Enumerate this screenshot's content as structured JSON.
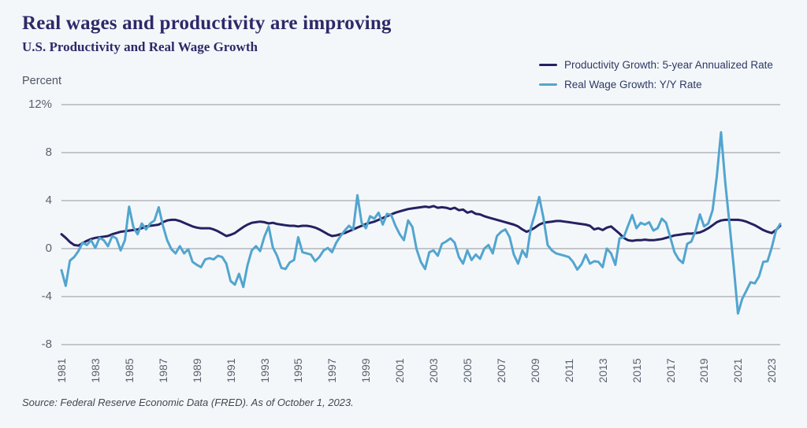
{
  "header": {
    "title": "Real wages and productivity are improving",
    "subtitle": "U.S. Productivity and Real Wage Growth"
  },
  "axis": {
    "unit_label": "Percent",
    "y_tick_labels": [
      "12%",
      "8",
      "4",
      "0",
      "-4",
      "-8"
    ],
    "y_tick_values": [
      12,
      8,
      4,
      0,
      -4,
      -8
    ],
    "x_tick_years": [
      1981,
      1983,
      1985,
      1987,
      1989,
      1991,
      1993,
      1995,
      1997,
      1999,
      2001,
      2003,
      2005,
      2007,
      2009,
      2011,
      2013,
      2015,
      2017,
      2019,
      2021,
      2023
    ]
  },
  "source": "Source: Federal Reserve Economic Data (FRED). As of October 1, 2023.",
  "colors": {
    "background": "#f4f7fa",
    "title": "#2e2968",
    "gridline": "#8f959c",
    "axis_text": "#59626e",
    "productivity_line": "#252161",
    "wage_line": "#52a5cf"
  },
  "chart_data": {
    "type": "line",
    "title": "U.S. Productivity and Real Wage Growth",
    "ylabel": "Percent",
    "ylim": [
      -8,
      12
    ],
    "grid": "horizontal",
    "legend_position": "top-right",
    "frequency": "quarterly",
    "x_start_year": 1981,
    "x_end_label": "2023 Q3",
    "series": [
      {
        "name": "Productivity Growth: 5-year Annualized Rate",
        "color": "#252161",
        "values": [
          1.2,
          0.9,
          0.55,
          0.3,
          0.25,
          0.45,
          0.65,
          0.8,
          0.9,
          0.95,
          1.0,
          1.05,
          1.2,
          1.3,
          1.4,
          1.45,
          1.5,
          1.55,
          1.6,
          1.7,
          1.85,
          1.9,
          1.95,
          2.0,
          2.2,
          2.35,
          2.4,
          2.4,
          2.3,
          2.15,
          2.0,
          1.85,
          1.75,
          1.7,
          1.7,
          1.7,
          1.6,
          1.45,
          1.25,
          1.05,
          1.15,
          1.3,
          1.55,
          1.8,
          2.0,
          2.15,
          2.2,
          2.25,
          2.2,
          2.1,
          2.15,
          2.05,
          2.0,
          1.95,
          1.9,
          1.9,
          1.85,
          1.9,
          1.9,
          1.85,
          1.75,
          1.6,
          1.4,
          1.2,
          1.05,
          1.1,
          1.2,
          1.3,
          1.45,
          1.6,
          1.75,
          1.9,
          2.05,
          2.15,
          2.25,
          2.4,
          2.55,
          2.7,
          2.85,
          3.0,
          3.1,
          3.2,
          3.3,
          3.35,
          3.4,
          3.45,
          3.5,
          3.45,
          3.55,
          3.4,
          3.45,
          3.4,
          3.3,
          3.4,
          3.2,
          3.25,
          3.0,
          3.1,
          2.9,
          2.85,
          2.7,
          2.6,
          2.5,
          2.4,
          2.3,
          2.2,
          2.1,
          2.0,
          1.85,
          1.6,
          1.4,
          1.55,
          1.75,
          2.0,
          2.15,
          2.2,
          2.25,
          2.3,
          2.3,
          2.25,
          2.2,
          2.15,
          2.1,
          2.05,
          2.0,
          1.9,
          1.6,
          1.7,
          1.55,
          1.75,
          1.85,
          1.55,
          1.25,
          0.9,
          0.7,
          0.65,
          0.7,
          0.7,
          0.75,
          0.7,
          0.7,
          0.75,
          0.8,
          0.9,
          1.0,
          1.1,
          1.15,
          1.2,
          1.25,
          1.25,
          1.3,
          1.35,
          1.5,
          1.7,
          1.95,
          2.2,
          2.35,
          2.4,
          2.4,
          2.4,
          2.4,
          2.35,
          2.25,
          2.1,
          1.95,
          1.75,
          1.55,
          1.4,
          1.3,
          1.55,
          1.9
        ]
      },
      {
        "name": "Real Wage Growth: Y/Y Rate",
        "color": "#52a5cf",
        "values": [
          -1.8,
          -3.1,
          -1.0,
          -0.7,
          -0.2,
          0.5,
          0.3,
          0.7,
          0.05,
          0.9,
          0.7,
          0.2,
          1.05,
          0.85,
          -0.15,
          0.7,
          3.5,
          1.8,
          1.2,
          2.1,
          1.6,
          2.1,
          2.35,
          3.45,
          1.9,
          0.7,
          -0.05,
          -0.4,
          0.2,
          -0.4,
          -0.05,
          -1.1,
          -1.35,
          -1.55,
          -0.9,
          -0.8,
          -0.9,
          -0.6,
          -0.7,
          -1.25,
          -2.7,
          -3.0,
          -2.1,
          -3.2,
          -1.4,
          -0.15,
          0.2,
          -0.2,
          1.0,
          1.85,
          0.1,
          -0.6,
          -1.6,
          -1.7,
          -1.15,
          -0.95,
          0.95,
          -0.3,
          -0.4,
          -0.5,
          -1.05,
          -0.7,
          -0.15,
          0.05,
          -0.3,
          0.5,
          1.05,
          1.5,
          1.9,
          1.6,
          4.45,
          2.15,
          1.7,
          2.7,
          2.5,
          3.0,
          2.0,
          2.9,
          2.8,
          1.9,
          1.2,
          0.7,
          2.35,
          1.8,
          -0.05,
          -1.1,
          -1.7,
          -0.3,
          -0.15,
          -0.6,
          0.4,
          0.6,
          0.85,
          0.5,
          -0.7,
          -1.25,
          -0.15,
          -0.95,
          -0.5,
          -0.85,
          0.0,
          0.3,
          -0.4,
          1.05,
          1.4,
          1.6,
          0.95,
          -0.5,
          -1.25,
          -0.15,
          -0.7,
          1.7,
          2.9,
          4.3,
          2.55,
          0.3,
          -0.15,
          -0.4,
          -0.5,
          -0.6,
          -0.7,
          -1.1,
          -1.75,
          -1.3,
          -0.5,
          -1.25,
          -1.05,
          -1.1,
          -1.55,
          0.0,
          -0.4,
          -1.35,
          0.85,
          0.95,
          1.9,
          2.8,
          1.7,
          2.15,
          2.0,
          2.2,
          1.5,
          1.7,
          2.5,
          2.15,
          0.95,
          -0.3,
          -0.9,
          -1.2,
          0.4,
          0.6,
          1.5,
          2.85,
          1.85,
          2.1,
          3.2,
          6.0,
          9.7,
          5.5,
          2.1,
          -1.5,
          -5.4,
          -4.2,
          -3.5,
          -2.8,
          -2.9,
          -2.3,
          -1.1,
          -1.05,
          0.1,
          1.5,
          2.05
        ]
      }
    ]
  }
}
